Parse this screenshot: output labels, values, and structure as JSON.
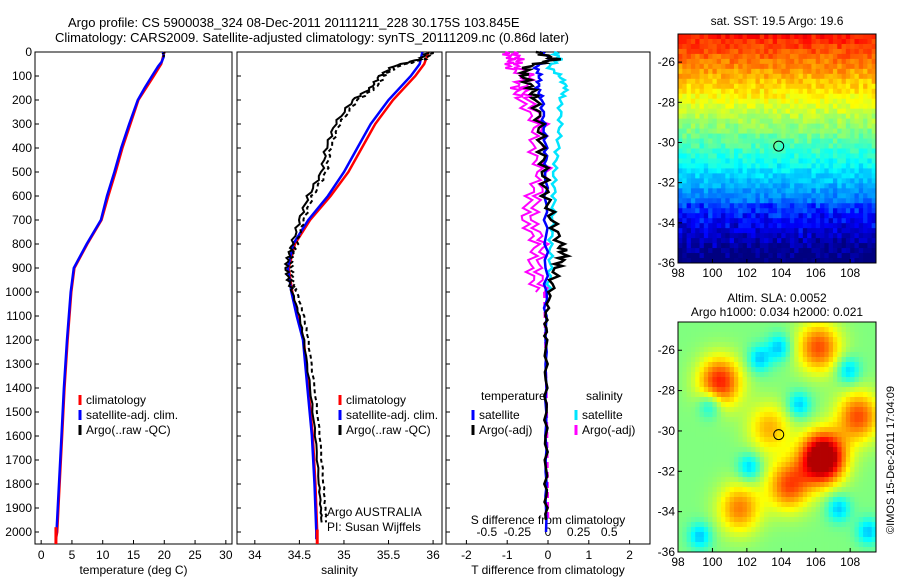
{
  "header": {
    "line1": "Argo profile: CS 5900038_324 08-Dec-2011 20111211_228 30.175S 103.845E",
    "line2": "Climatology: CARS2009. Satellite-adjusted climatology: synTS_20111209.nc (0.86d later)"
  },
  "colors": {
    "climatology": "#ff0000",
    "satellite": "#0000ff",
    "argo": "#000000",
    "sat_salinity": "#00e5ff",
    "argo_salinity": "#ff00ff"
  },
  "chart_data": [
    {
      "type": "line",
      "name_key": "temperature",
      "xlabel": "temperature (deg C)",
      "ylim": [
        0,
        2050
      ],
      "xlim": [
        -1,
        31
      ],
      "xticks": [
        0,
        5,
        10,
        15,
        20,
        25,
        30
      ],
      "yticks": [
        0,
        100,
        200,
        300,
        400,
        500,
        600,
        700,
        800,
        900,
        1000,
        1100,
        1200,
        1300,
        1400,
        1500,
        1600,
        1700,
        1800,
        1900,
        2000
      ],
      "legend": [
        "climatology",
        "satellite-adj. clim.",
        "Argo(..raw -QC)"
      ],
      "series": [
        {
          "name": "climatology",
          "depth": [
            0,
            50,
            100,
            200,
            300,
            400,
            500,
            600,
            700,
            800,
            900,
            1000,
            1200,
            1400,
            1600,
            1800,
            2000,
            2030
          ],
          "values": [
            20.0,
            19.5,
            18.3,
            15.8,
            14.5,
            13.2,
            12.1,
            10.9,
            9.8,
            7.5,
            5.4,
            4.9,
            4.3,
            3.8,
            3.4,
            3.0,
            2.6,
            2.4
          ]
        },
        {
          "name": "satellite-adj. clim.",
          "depth": [
            0,
            20,
            40,
            60,
            100,
            150,
            200,
            300,
            400,
            500,
            600,
            700,
            800,
            900,
            1000,
            1200,
            1400,
            1600,
            1800,
            2000,
            2030
          ],
          "values": [
            19.8,
            19.9,
            19.6,
            19.0,
            18.0,
            16.8,
            15.7,
            14.3,
            13.0,
            11.9,
            10.7,
            9.7,
            7.4,
            5.3,
            4.8,
            4.2,
            3.7,
            3.3,
            2.9,
            2.5,
            2.4
          ]
        }
      ]
    },
    {
      "type": "line",
      "name_key": "salinity",
      "xlabel": "salinity",
      "ylim": [
        0,
        2050
      ],
      "xlim": [
        33.8,
        36.1
      ],
      "xticks": [
        34,
        34.5,
        35,
        35.5,
        36
      ],
      "legend": [
        "climatology",
        "satellite-adj. clim.",
        "Argo(..raw -QC)"
      ],
      "annotation": [
        "Argo AUSTRALIA",
        "PI: Susan Wijffels"
      ],
      "series": [
        {
          "name": "climatology",
          "depth": [
            0,
            50,
            100,
            200,
            300,
            400,
            500,
            600,
            700,
            800,
            900,
            1000,
            1100,
            1200,
            1400,
            1600,
            1800,
            2000,
            2030
          ],
          "values": [
            35.95,
            35.9,
            35.8,
            35.55,
            35.35,
            35.2,
            35.05,
            34.85,
            34.62,
            34.45,
            34.38,
            34.42,
            34.48,
            34.55,
            34.6,
            34.65,
            34.68,
            34.7,
            34.7
          ]
        },
        {
          "name": "satellite-adj. clim.",
          "depth": [
            0,
            50,
            100,
            200,
            300,
            400,
            500,
            600,
            700,
            800,
            900,
            1000,
            1100,
            1200,
            1400,
            1600,
            1800,
            2000,
            2030
          ],
          "values": [
            35.88,
            35.85,
            35.75,
            35.5,
            35.3,
            35.15,
            35.0,
            34.82,
            34.6,
            34.43,
            34.37,
            34.41,
            34.47,
            34.54,
            34.59,
            34.64,
            34.67,
            34.69,
            34.69
          ]
        },
        {
          "name": "Argo(..raw -QC)",
          "depth": [
            0,
            30,
            60,
            100,
            150,
            200,
            300,
            400,
            500,
            600,
            700,
            800,
            850,
            900,
            950,
            1000,
            1100,
            1200,
            1400,
            1600,
            1800,
            1900,
            1960
          ],
          "values": [
            35.95,
            35.85,
            35.55,
            35.4,
            35.3,
            35.1,
            34.9,
            34.8,
            34.75,
            34.6,
            34.5,
            34.42,
            34.38,
            34.35,
            34.38,
            34.42,
            34.5,
            34.55,
            34.62,
            34.68,
            34.72,
            34.74,
            34.75
          ]
        }
      ]
    },
    {
      "type": "line",
      "name_key": "differences",
      "xlabel": "T difference from climatology",
      "xlabel_top": "S difference from climatology",
      "ylim": [
        0,
        2050
      ],
      "xlim": [
        -2.5,
        2.5
      ],
      "xticks": [
        -2,
        -1,
        0,
        1,
        2
      ],
      "xticks_s": [
        "-0.5",
        "-0.25",
        "0",
        "0.25",
        "0.5"
      ],
      "legend_temperature": [
        "temperature",
        "satellite",
        "Argo(-adj)"
      ],
      "legend_salinity": [
        "salinity",
        "satellite",
        "Argo(-adj)"
      ],
      "series": [
        {
          "name": "T satellite",
          "depth": [
            0,
            30,
            60,
            100,
            150,
            200,
            300,
            400,
            500,
            700,
            900,
            1100,
            1400,
            1700,
            2000
          ],
          "values": [
            -0.2,
            0.1,
            -0.3,
            -0.2,
            -0.25,
            -0.15,
            -0.1,
            -0.05,
            -0.05,
            -0.05,
            -0.05,
            -0.05,
            -0.05,
            -0.05,
            -0.05
          ]
        },
        {
          "name": "T Argo(-adj)",
          "depth": [
            0,
            30,
            60,
            100,
            150,
            200,
            300,
            400,
            500,
            600,
            700,
            800,
            850,
            900,
            1000,
            1100,
            1200,
            1400,
            1600,
            1800,
            1950
          ],
          "values": [
            -0.3,
            0.2,
            -0.5,
            -0.6,
            -0.4,
            -0.3,
            -0.2,
            -0.15,
            -0.1,
            -0.05,
            0.1,
            0.3,
            0.4,
            0.2,
            0.05,
            -0.05,
            -0.05,
            -0.05,
            -0.05,
            -0.05,
            -0.05
          ]
        },
        {
          "name": "S satellite",
          "depth": [
            0,
            30,
            60,
            100,
            150,
            200,
            300,
            400,
            500,
            600,
            700,
            800,
            900,
            1000
          ],
          "values": [
            0.05,
            0.1,
            0.0,
            0.1,
            0.15,
            0.1,
            0.1,
            0.08,
            0.05,
            0.05,
            0.04,
            0.02,
            0.02,
            0.0
          ]
        },
        {
          "name": "S Argo(-adj)",
          "depth": [
            0,
            30,
            60,
            100,
            150,
            200,
            300,
            400,
            500,
            600,
            700,
            800,
            900,
            1000
          ],
          "values": [
            -0.3,
            -0.25,
            -0.28,
            -0.15,
            -0.22,
            -0.18,
            -0.05,
            -0.08,
            -0.02,
            -0.1,
            -0.15,
            -0.05,
            -0.1,
            -0.05
          ]
        }
      ]
    },
    {
      "type": "heatmap",
      "name_key": "sst_map",
      "title": "sat. SST: 19.5 Argo: 19.6",
      "xticks": [
        98,
        100,
        102,
        104,
        106,
        108
      ],
      "yticks": [
        -26,
        -28,
        -30,
        -32,
        -34,
        -36
      ],
      "xlim": [
        98,
        109.5
      ],
      "ylim": [
        -36,
        -24.6
      ],
      "marker": [
        103.85,
        -30.18
      ]
    },
    {
      "type": "heatmap",
      "name_key": "sla_map",
      "title_line1": "Altim. SLA: 0.0052",
      "title_line2": "Argo h1000: 0.034 h2000: 0.021",
      "xticks": [
        98,
        100,
        102,
        104,
        106,
        108
      ],
      "yticks": [
        -26,
        -28,
        -30,
        -32,
        -34,
        -36
      ],
      "xlim": [
        98,
        109.5
      ],
      "ylim": [
        -36,
        -24.6
      ],
      "marker": [
        103.85,
        -30.18
      ],
      "side_text": "©IMOS 15-Dec-2011 17:04:09"
    }
  ]
}
